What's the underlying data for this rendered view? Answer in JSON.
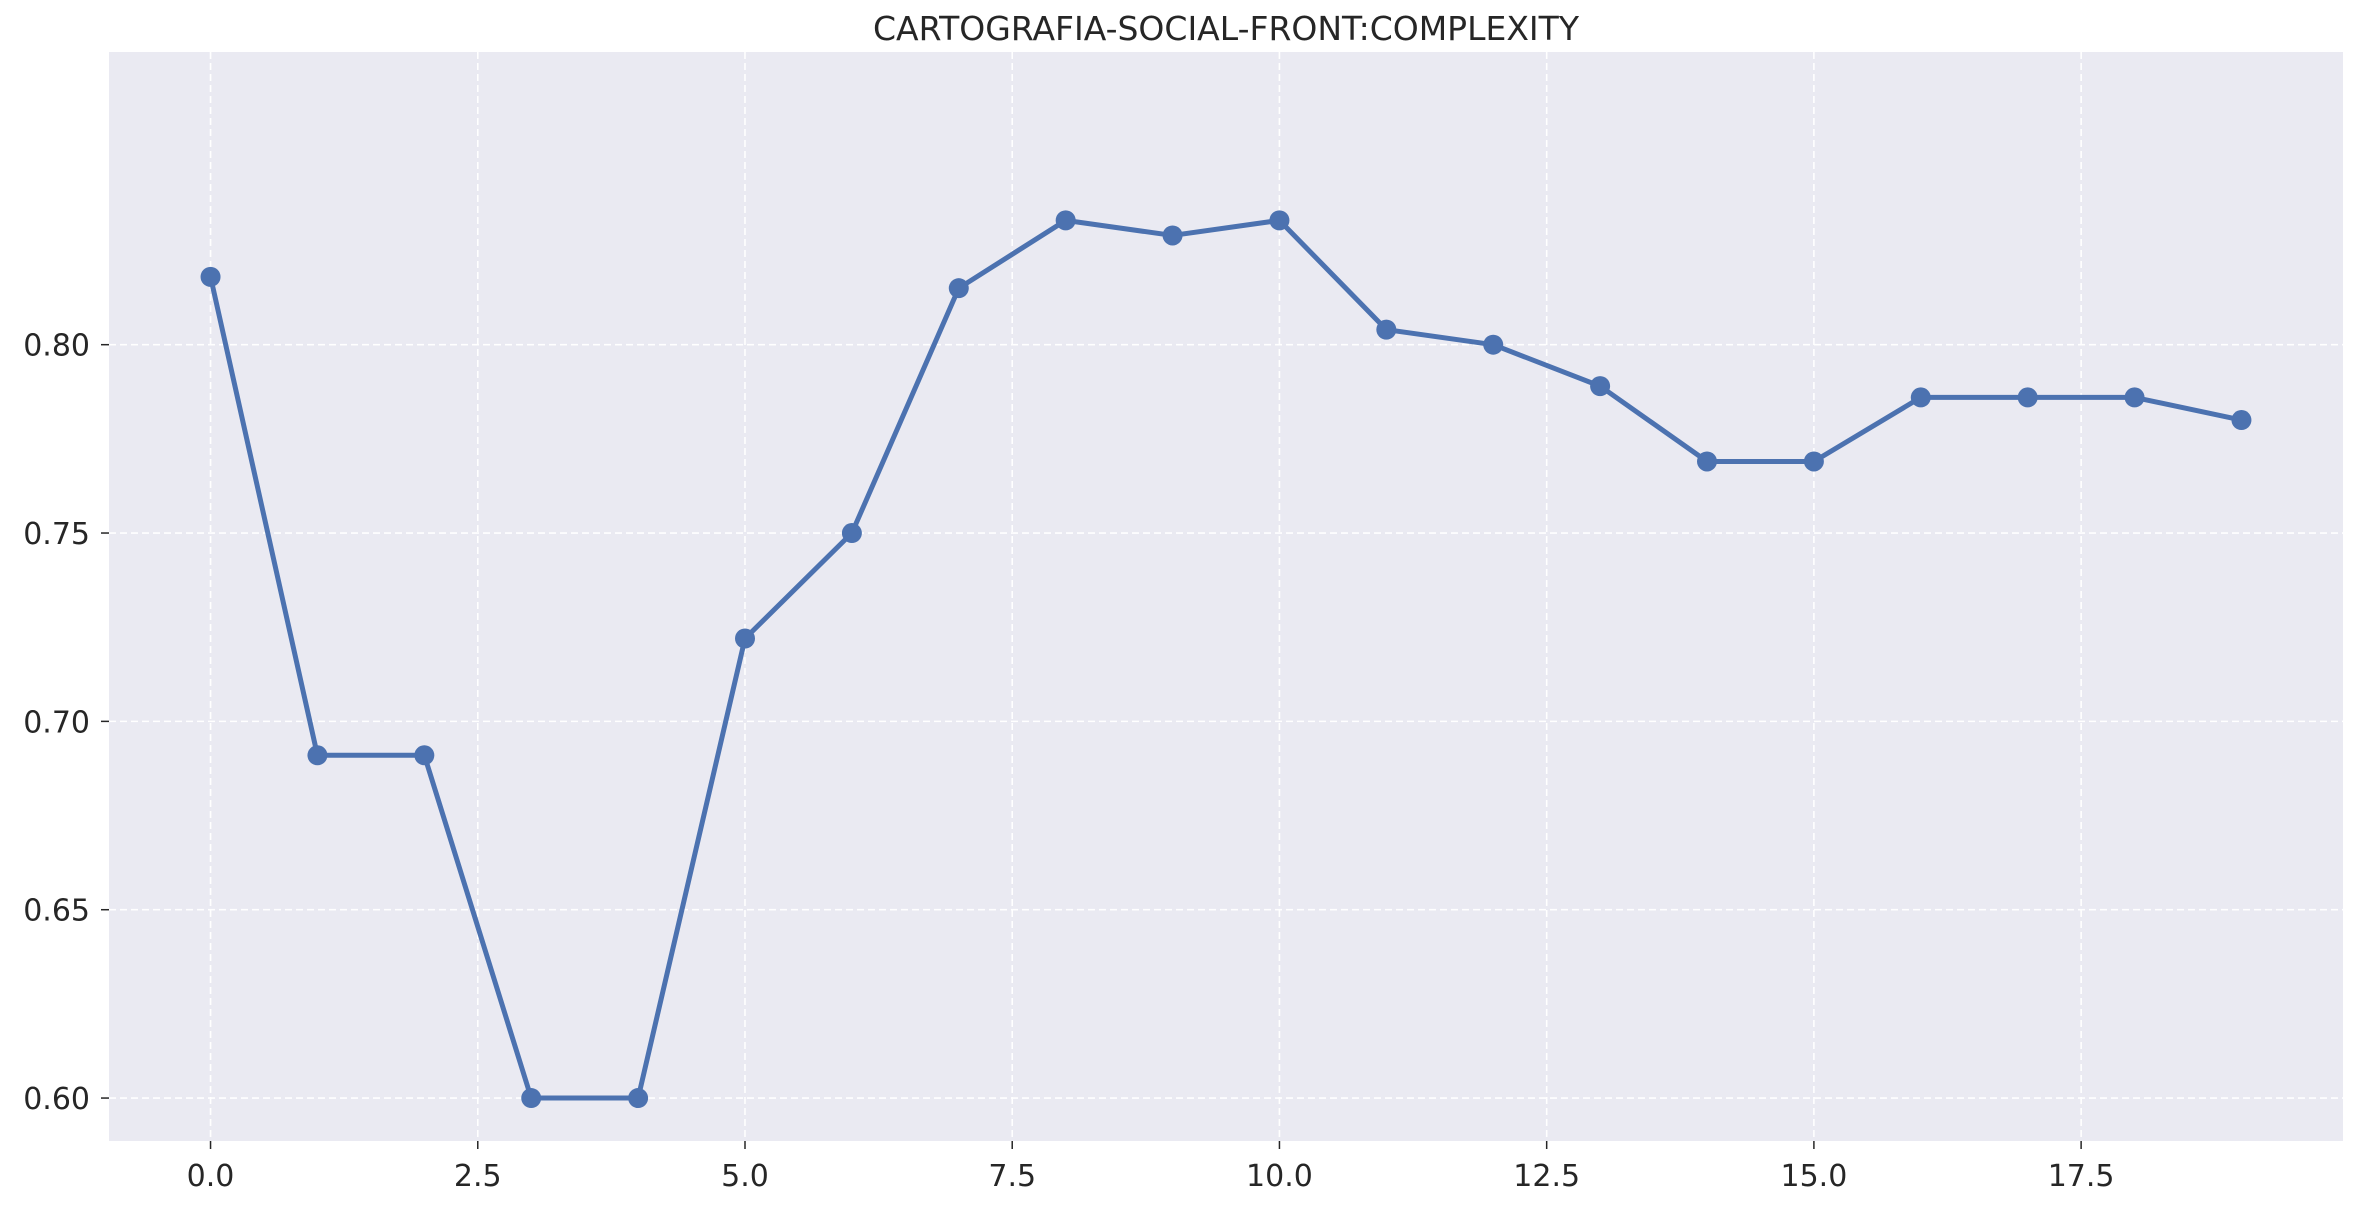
{
  "chart_data": {
    "type": "line",
    "title": "CARTOGRAFIA-SOCIAL-FRONT:COMPLEXITY",
    "xlabel": "",
    "ylabel": "",
    "xlim": [
      -0.95,
      19.95
    ],
    "ylim": [
      0.5886,
      0.8777
    ],
    "x_ticks": [
      0.0,
      2.5,
      5.0,
      7.5,
      10.0,
      12.5,
      15.0,
      17.5
    ],
    "x_tick_labels": [
      "0.0",
      "2.5",
      "5.0",
      "7.5",
      "10.0",
      "12.5",
      "15.0",
      "17.5"
    ],
    "y_ticks": [
      0.6,
      0.65,
      0.7,
      0.75,
      0.8
    ],
    "y_tick_labels": [
      "0.60",
      "0.65",
      "0.70",
      "0.75",
      "0.80"
    ],
    "grid": true,
    "background_color": "#eaeaf2",
    "series": [
      {
        "color": "#4c72b0",
        "marker": "circle",
        "x": [
          0,
          1,
          2,
          3,
          4,
          5,
          6,
          7,
          8,
          9,
          10,
          11,
          12,
          13,
          14,
          15,
          16,
          17,
          18,
          19
        ],
        "y": [
          0.818,
          0.691,
          0.691,
          0.6,
          0.6,
          0.722,
          0.75,
          0.815,
          0.833,
          0.829,
          0.833,
          0.804,
          0.8,
          0.789,
          0.769,
          0.769,
          0.786,
          0.786,
          0.786,
          0.78
        ]
      }
    ]
  }
}
